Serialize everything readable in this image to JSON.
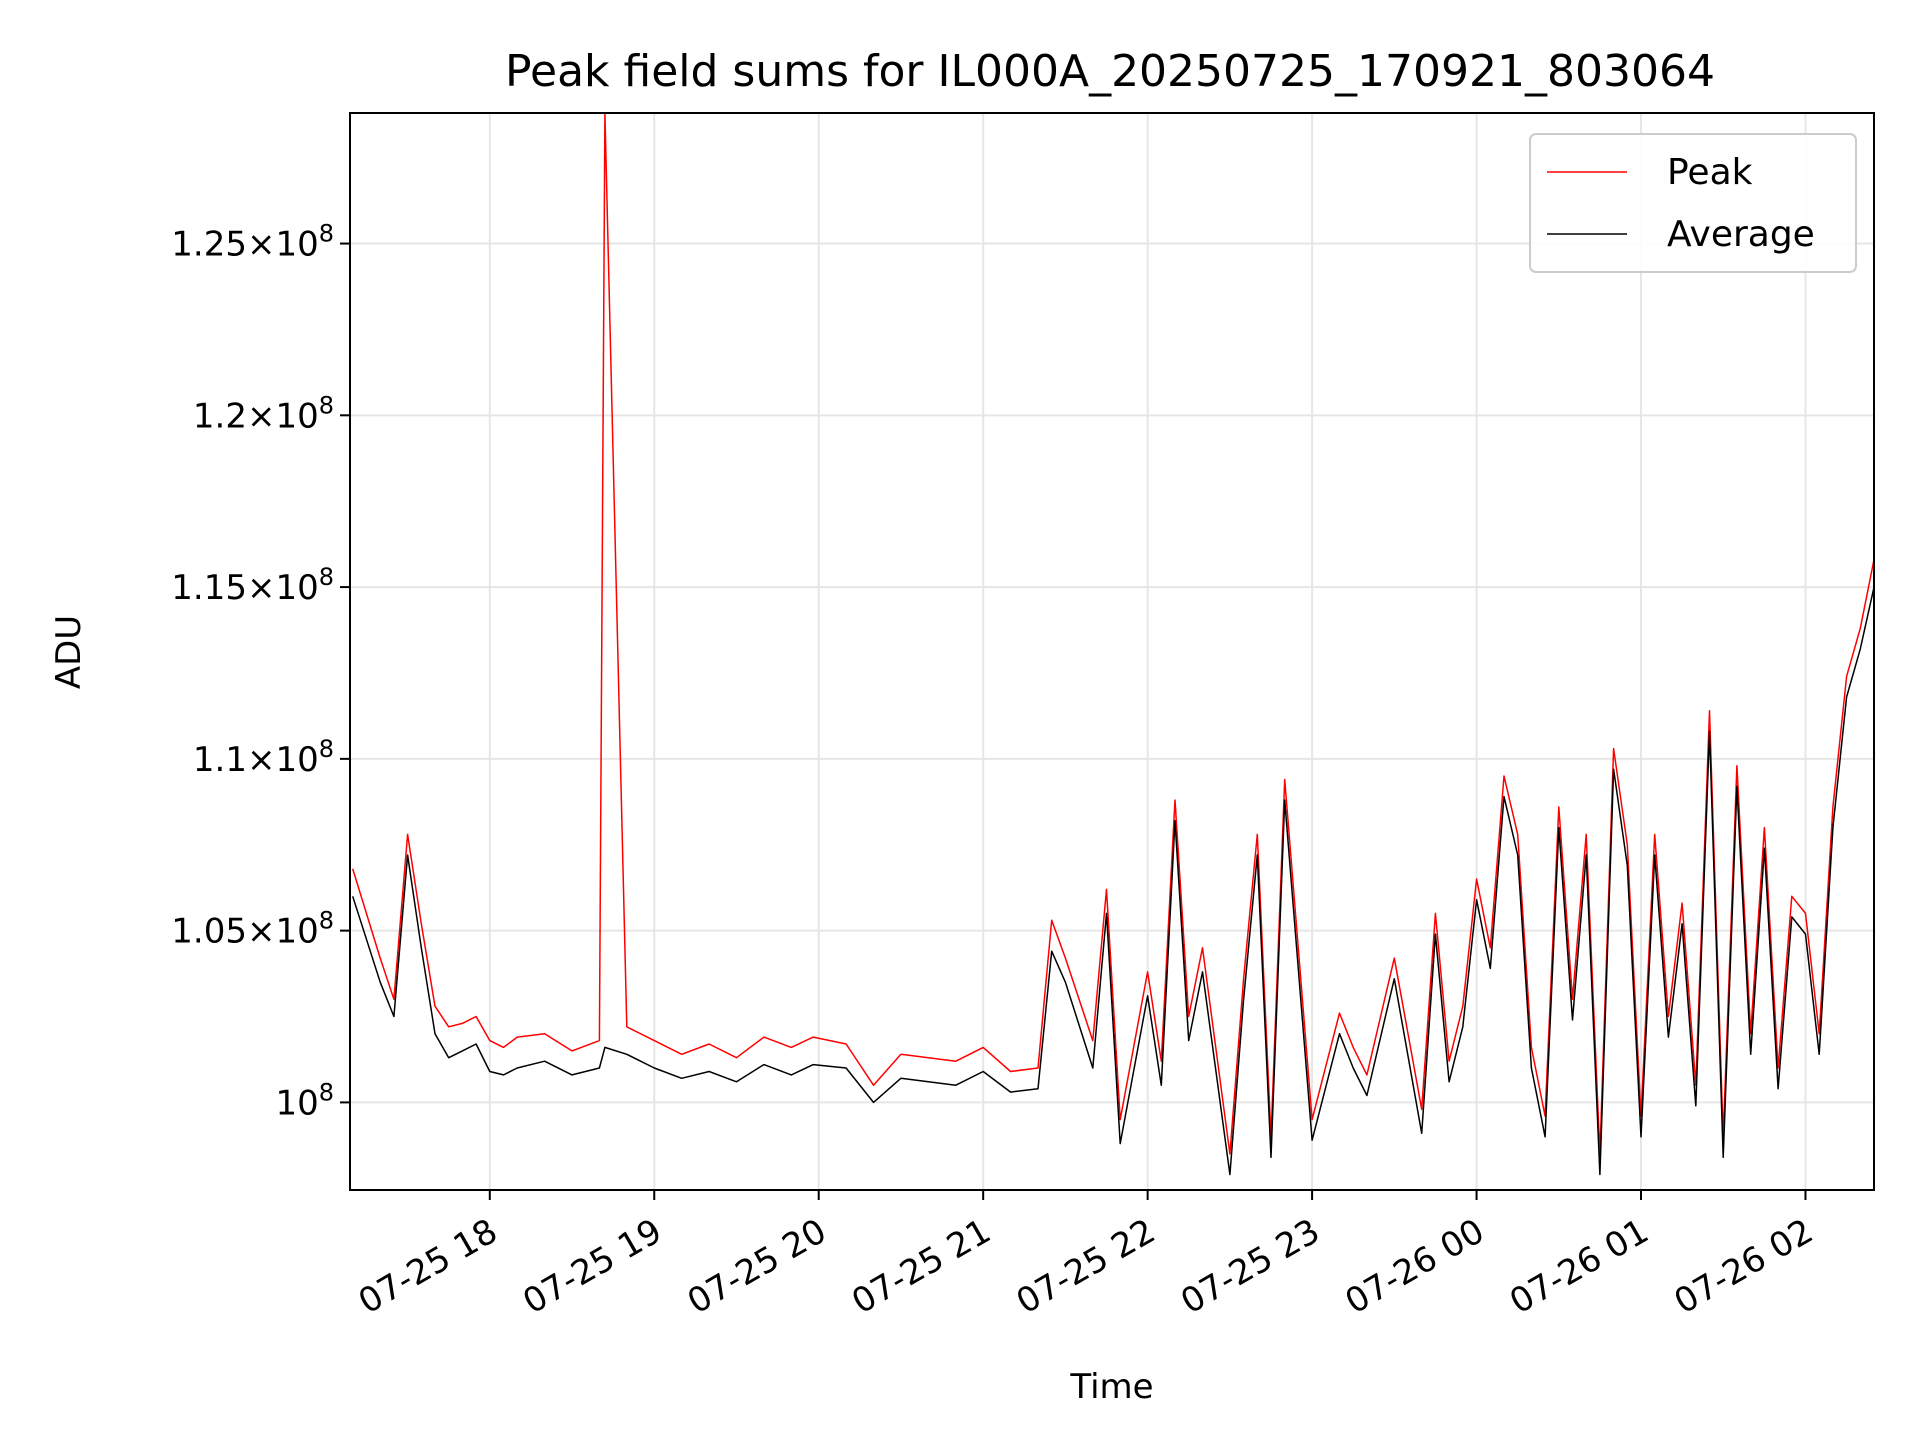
{
  "chart_data": {
    "type": "line",
    "title": "Peak field sums for IL000A_20250725_170921_803064",
    "xlabel": "Time",
    "ylabel": "ADU",
    "x_range": [
      "2025-07-25 17:09",
      "2025-07-26 02:25"
    ],
    "x_ticks": [
      "07-25 18",
      "07-25 19",
      "07-25 20",
      "07-25 21",
      "07-25 22",
      "07-25 23",
      "07-26 00",
      "07-26 01",
      "07-26 02"
    ],
    "ylim": [
      97450000,
      128800000
    ],
    "y_ticks": [
      {
        "value": 100000000,
        "mant": "",
        "exp": "8"
      },
      {
        "value": 105000000,
        "mant": "1.05",
        "exp": "8"
      },
      {
        "value": 110000000,
        "mant": "1.1",
        "exp": "8"
      },
      {
        "value": 115000000,
        "mant": "1.15",
        "exp": "8"
      },
      {
        "value": 120000000,
        "mant": "1.2",
        "exp": "8"
      },
      {
        "value": 125000000,
        "mant": "1.25",
        "exp": "8"
      }
    ],
    "grid": true,
    "legend": "top-right",
    "colors": {
      "Peak": "#ff0000",
      "Average": "#000000"
    },
    "series": [
      {
        "name": "Peak",
        "x": [
          "2025-07-25 17:10",
          "2025-07-25 17:20",
          "2025-07-25 17:25",
          "2025-07-25 17:30",
          "2025-07-25 17:35",
          "2025-07-25 17:40",
          "2025-07-25 17:45",
          "2025-07-25 17:50",
          "2025-07-25 17:55",
          "2025-07-25 18:00",
          "2025-07-25 18:05",
          "2025-07-25 18:10",
          "2025-07-25 18:20",
          "2025-07-25 18:30",
          "2025-07-25 18:40",
          "2025-07-25 18:42",
          "2025-07-25 18:50",
          "2025-07-25 19:00",
          "2025-07-25 19:10",
          "2025-07-25 19:20",
          "2025-07-25 19:30",
          "2025-07-25 19:40",
          "2025-07-25 19:50",
          "2025-07-25 19:58",
          "2025-07-25 20:10",
          "2025-07-25 20:20",
          "2025-07-25 20:30",
          "2025-07-25 20:40",
          "2025-07-25 20:50",
          "2025-07-25 21:00",
          "2025-07-25 21:10",
          "2025-07-25 21:20",
          "2025-07-25 21:25",
          "2025-07-25 21:30",
          "2025-07-25 21:40",
          "2025-07-25 21:45",
          "2025-07-25 21:50",
          "2025-07-25 22:00",
          "2025-07-25 22:05",
          "2025-07-25 22:10",
          "2025-07-25 22:15",
          "2025-07-25 22:20",
          "2025-07-25 22:30",
          "2025-07-25 22:35",
          "2025-07-25 22:40",
          "2025-07-25 22:45",
          "2025-07-25 22:50",
          "2025-07-25 23:00",
          "2025-07-25 23:10",
          "2025-07-25 23:15",
          "2025-07-25 23:20",
          "2025-07-25 23:30",
          "2025-07-25 23:40",
          "2025-07-25 23:45",
          "2025-07-25 23:50",
          "2025-07-25 23:55",
          "2025-07-26 00:00",
          "2025-07-26 00:05",
          "2025-07-26 00:10",
          "2025-07-26 00:15",
          "2025-07-26 00:20",
          "2025-07-26 00:25",
          "2025-07-26 00:30",
          "2025-07-26 00:35",
          "2025-07-26 00:40",
          "2025-07-26 00:45",
          "2025-07-26 00:50",
          "2025-07-26 00:55",
          "2025-07-26 01:00",
          "2025-07-26 01:05",
          "2025-07-26 01:10",
          "2025-07-26 01:15",
          "2025-07-26 01:20",
          "2025-07-26 01:25",
          "2025-07-26 01:30",
          "2025-07-26 01:35",
          "2025-07-26 01:40",
          "2025-07-26 01:45",
          "2025-07-26 01:50",
          "2025-07-26 01:55",
          "2025-07-26 02:00",
          "2025-07-26 02:05",
          "2025-07-26 02:10",
          "2025-07-26 02:15",
          "2025-07-26 02:20",
          "2025-07-26 02:25"
        ],
        "y": [
          106800000,
          104200000,
          103000000,
          107800000,
          105200000,
          102800000,
          102200000,
          102300000,
          102500000,
          101800000,
          101600000,
          101900000,
          102000000,
          101500000,
          101800000,
          128800000,
          102200000,
          101800000,
          101400000,
          101700000,
          101300000,
          101900000,
          101600000,
          101900000,
          101700000,
          100500000,
          101400000,
          101300000,
          101200000,
          101600000,
          100900000,
          101000000,
          105300000,
          104200000,
          101800000,
          106200000,
          99500000,
          103800000,
          101200000,
          108800000,
          102500000,
          104500000,
          98500000,
          103600000,
          107800000,
          99000000,
          109400000,
          99500000,
          102600000,
          101600000,
          100800000,
          104200000,
          99800000,
          105500000,
          101200000,
          102800000,
          106500000,
          104500000,
          109500000,
          107800000,
          101600000,
          99600000,
          108600000,
          103000000,
          107800000,
          98500000,
          110300000,
          107500000,
          99600000,
          107800000,
          102500000,
          105800000,
          100500000,
          111400000,
          99000000,
          109800000,
          102000000,
          108000000,
          101000000,
          106000000,
          105500000,
          102000000,
          108600000,
          112400000,
          113800000,
          115800000
        ]
      },
      {
        "name": "Average",
        "x": [
          "2025-07-25 17:10",
          "2025-07-25 17:20",
          "2025-07-25 17:25",
          "2025-07-25 17:30",
          "2025-07-25 17:35",
          "2025-07-25 17:40",
          "2025-07-25 17:45",
          "2025-07-25 17:50",
          "2025-07-25 17:55",
          "2025-07-25 18:00",
          "2025-07-25 18:05",
          "2025-07-25 18:10",
          "2025-07-25 18:20",
          "2025-07-25 18:30",
          "2025-07-25 18:40",
          "2025-07-25 18:42",
          "2025-07-25 18:50",
          "2025-07-25 19:00",
          "2025-07-25 19:10",
          "2025-07-25 19:20",
          "2025-07-25 19:30",
          "2025-07-25 19:40",
          "2025-07-25 19:50",
          "2025-07-25 19:58",
          "2025-07-25 20:10",
          "2025-07-25 20:20",
          "2025-07-25 20:30",
          "2025-07-25 20:40",
          "2025-07-25 20:50",
          "2025-07-25 21:00",
          "2025-07-25 21:10",
          "2025-07-25 21:20",
          "2025-07-25 21:25",
          "2025-07-25 21:30",
          "2025-07-25 21:40",
          "2025-07-25 21:45",
          "2025-07-25 21:50",
          "2025-07-25 22:00",
          "2025-07-25 22:05",
          "2025-07-25 22:10",
          "2025-07-25 22:15",
          "2025-07-25 22:20",
          "2025-07-25 22:30",
          "2025-07-25 22:35",
          "2025-07-25 22:40",
          "2025-07-25 22:45",
          "2025-07-25 22:50",
          "2025-07-25 23:00",
          "2025-07-25 23:10",
          "2025-07-25 23:15",
          "2025-07-25 23:20",
          "2025-07-25 23:30",
          "2025-07-25 23:40",
          "2025-07-25 23:45",
          "2025-07-25 23:50",
          "2025-07-25 23:55",
          "2025-07-26 00:00",
          "2025-07-26 00:05",
          "2025-07-26 00:10",
          "2025-07-26 00:15",
          "2025-07-26 00:20",
          "2025-07-26 00:25",
          "2025-07-26 00:30",
          "2025-07-26 00:35",
          "2025-07-26 00:40",
          "2025-07-26 00:45",
          "2025-07-26 00:50",
          "2025-07-26 00:55",
          "2025-07-26 01:00",
          "2025-07-26 01:05",
          "2025-07-26 01:10",
          "2025-07-26 01:15",
          "2025-07-26 01:20",
          "2025-07-26 01:25",
          "2025-07-26 01:30",
          "2025-07-26 01:35",
          "2025-07-26 01:40",
          "2025-07-26 01:45",
          "2025-07-26 01:50",
          "2025-07-26 01:55",
          "2025-07-26 02:00",
          "2025-07-26 02:05",
          "2025-07-26 02:10",
          "2025-07-26 02:15",
          "2025-07-26 02:20",
          "2025-07-26 02:25"
        ],
        "y": [
          106000000,
          103500000,
          102500000,
          107200000,
          104500000,
          102000000,
          101300000,
          101500000,
          101700000,
          100900000,
          100800000,
          101000000,
          101200000,
          100800000,
          101000000,
          101600000,
          101400000,
          101000000,
          100700000,
          100900000,
          100600000,
          101100000,
          100800000,
          101100000,
          101000000,
          100000000,
          100700000,
          100600000,
          100500000,
          100900000,
          100300000,
          100400000,
          104400000,
          103500000,
          101000000,
          105500000,
          98800000,
          103100000,
          100500000,
          108200000,
          101800000,
          103800000,
          97900000,
          103000000,
          107200000,
          98400000,
          108800000,
          98900000,
          102000000,
          101000000,
          100200000,
          103600000,
          99100000,
          104900000,
          100600000,
          102200000,
          105900000,
          103900000,
          108900000,
          107200000,
          101000000,
          99000000,
          108000000,
          102400000,
          107200000,
          97900000,
          109700000,
          106900000,
          99000000,
          107200000,
          101900000,
          105200000,
          99900000,
          110800000,
          98400000,
          109200000,
          101400000,
          107400000,
          100400000,
          105400000,
          104900000,
          101400000,
          108000000,
          111800000,
          113200000,
          115000000
        ]
      }
    ]
  }
}
